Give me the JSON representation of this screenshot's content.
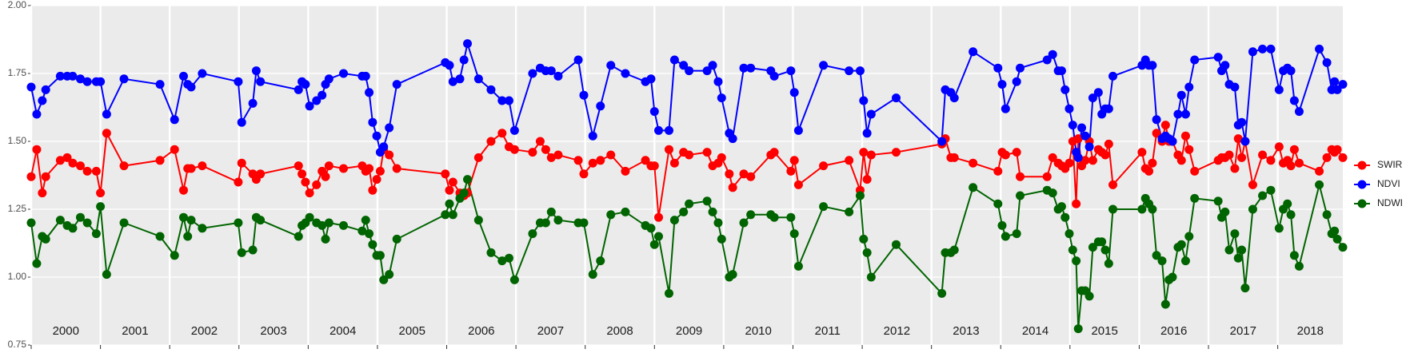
{
  "chart_data": {
    "type": "line",
    "x": [
      2000.0,
      2000.08,
      2000.16,
      2000.21,
      2000.42,
      2000.52,
      2000.6,
      2000.71,
      2000.81,
      2000.94,
      2001.0,
      2001.09,
      2001.34,
      2001.86,
      2002.07,
      2002.2,
      2002.26,
      2002.31,
      2002.47,
      2002.99,
      2003.04,
      2003.2,
      2003.25,
      2003.31,
      2003.86,
      2003.91,
      2003.96,
      2004.02,
      2004.12,
      2004.2,
      2004.25,
      2004.3,
      2004.51,
      2004.78,
      2004.83,
      2004.88,
      2004.93,
      2004.99,
      2005.04,
      2005.09,
      2005.17,
      2005.28,
      2005.98,
      2006.04,
      2006.09,
      2006.19,
      2006.25,
      2006.3,
      2006.46,
      2006.64,
      2006.8,
      2006.9,
      2006.98,
      2007.24,
      2007.35,
      2007.43,
      2007.51,
      2007.61,
      2007.9,
      2007.98,
      2008.11,
      2008.22,
      2008.37,
      2008.58,
      2008.87,
      2008.95,
      2009.0,
      2009.06,
      2009.21,
      2009.29,
      2009.42,
      2009.5,
      2009.76,
      2009.84,
      2009.92,
      2009.97,
      2010.08,
      2010.13,
      2010.29,
      2010.39,
      2010.68,
      2010.73,
      2010.97,
      2011.02,
      2011.08,
      2011.44,
      2011.81,
      2011.97,
      2012.02,
      2012.07,
      2012.13,
      2012.49,
      2013.15,
      2013.2,
      2013.28,
      2013.33,
      2013.6,
      2013.96,
      2014.02,
      2014.07,
      2014.23,
      2014.28,
      2014.67,
      2014.75,
      2014.83,
      2014.88,
      2014.93,
      2014.99,
      2015.04,
      2015.09,
      2015.12,
      2015.17,
      2015.22,
      2015.28,
      2015.33,
      2015.41,
      2015.46,
      2015.51,
      2015.56,
      2015.62,
      2016.04,
      2016.09,
      2016.14,
      2016.19,
      2016.25,
      2016.33,
      2016.38,
      2016.43,
      2016.48,
      2016.56,
      2016.61,
      2016.67,
      2016.72,
      2016.8,
      2017.14,
      2017.19,
      2017.24,
      2017.3,
      2017.38,
      2017.43,
      2017.48,
      2017.53,
      2017.64,
      2017.78,
      2017.9,
      2018.02,
      2018.08,
      2018.14,
      2018.19,
      2018.24,
      2018.31,
      2018.6,
      2018.71,
      2018.78,
      2018.82,
      2018.86,
      2018.94
    ],
    "series": [
      {
        "name": "SWIR",
        "color": "#ff0000",
        "values": [
          1.37,
          1.47,
          1.31,
          1.37,
          1.43,
          1.44,
          1.42,
          1.41,
          1.39,
          1.39,
          1.31,
          1.53,
          1.41,
          1.43,
          1.47,
          1.32,
          1.4,
          1.4,
          1.41,
          1.35,
          1.42,
          1.38,
          1.36,
          1.38,
          1.41,
          1.38,
          1.35,
          1.31,
          1.34,
          1.39,
          1.37,
          1.41,
          1.4,
          1.41,
          1.39,
          1.4,
          1.32,
          1.36,
          1.39,
          1.47,
          1.45,
          1.4,
          1.38,
          1.32,
          1.35,
          1.31,
          1.3,
          1.31,
          1.44,
          1.5,
          1.53,
          1.48,
          1.47,
          1.46,
          1.5,
          1.47,
          1.44,
          1.45,
          1.43,
          1.38,
          1.42,
          1.43,
          1.45,
          1.39,
          1.43,
          1.41,
          1.41,
          1.22,
          1.47,
          1.42,
          1.46,
          1.45,
          1.46,
          1.41,
          1.42,
          1.44,
          1.38,
          1.33,
          1.38,
          1.37,
          1.45,
          1.46,
          1.39,
          1.43,
          1.34,
          1.41,
          1.43,
          1.32,
          1.46,
          1.36,
          1.45,
          1.46,
          1.49,
          1.51,
          1.44,
          1.44,
          1.42,
          1.39,
          1.46,
          1.45,
          1.46,
          1.37,
          1.37,
          1.44,
          1.42,
          1.41,
          1.4,
          1.42,
          1.5,
          1.27,
          1.51,
          1.41,
          1.43,
          1.5,
          1.43,
          1.47,
          1.46,
          1.45,
          1.49,
          1.34,
          1.46,
          1.4,
          1.39,
          1.42,
          1.53,
          1.5,
          1.56,
          1.5,
          1.5,
          1.45,
          1.43,
          1.52,
          1.47,
          1.39,
          1.43,
          1.44,
          1.44,
          1.45,
          1.4,
          1.51,
          1.44,
          1.5,
          1.34,
          1.45,
          1.43,
          1.48,
          1.42,
          1.43,
          1.41,
          1.47,
          1.42,
          1.39,
          1.44,
          1.47,
          1.46,
          1.47,
          1.44
        ]
      },
      {
        "name": "NDVI",
        "color": "#0000ff",
        "values": [
          1.7,
          1.6,
          1.65,
          1.69,
          1.74,
          1.74,
          1.74,
          1.73,
          1.72,
          1.72,
          1.72,
          1.6,
          1.73,
          1.71,
          1.58,
          1.74,
          1.71,
          1.7,
          1.75,
          1.72,
          1.57,
          1.64,
          1.76,
          1.72,
          1.69,
          1.72,
          1.71,
          1.63,
          1.65,
          1.67,
          1.71,
          1.73,
          1.75,
          1.74,
          1.74,
          1.68,
          1.57,
          1.52,
          1.46,
          1.48,
          1.55,
          1.71,
          1.79,
          1.78,
          1.72,
          1.73,
          1.8,
          1.86,
          1.73,
          1.69,
          1.65,
          1.65,
          1.54,
          1.75,
          1.77,
          1.76,
          1.76,
          1.74,
          1.8,
          1.67,
          1.52,
          1.63,
          1.78,
          1.75,
          1.72,
          1.73,
          1.61,
          1.54,
          1.54,
          1.8,
          1.78,
          1.76,
          1.76,
          1.78,
          1.72,
          1.66,
          1.53,
          1.51,
          1.77,
          1.77,
          1.76,
          1.74,
          1.76,
          1.68,
          1.54,
          1.78,
          1.76,
          1.76,
          1.65,
          1.53,
          1.6,
          1.66,
          1.5,
          1.69,
          1.68,
          1.66,
          1.83,
          1.77,
          1.71,
          1.62,
          1.72,
          1.77,
          1.8,
          1.82,
          1.76,
          1.76,
          1.69,
          1.62,
          1.56,
          1.46,
          1.44,
          1.55,
          1.52,
          1.48,
          1.66,
          1.68,
          1.6,
          1.62,
          1.62,
          1.74,
          1.78,
          1.8,
          1.78,
          1.78,
          1.58,
          1.51,
          1.52,
          1.51,
          1.5,
          1.6,
          1.67,
          1.6,
          1.7,
          1.8,
          1.81,
          1.76,
          1.78,
          1.71,
          1.7,
          1.56,
          1.57,
          1.5,
          1.83,
          1.84,
          1.84,
          1.69,
          1.76,
          1.77,
          1.76,
          1.65,
          1.61,
          1.84,
          1.79,
          1.69,
          1.72,
          1.69,
          1.71
        ]
      },
      {
        "name": "NDWI",
        "color": "#006400",
        "values": [
          1.2,
          1.05,
          1.15,
          1.14,
          1.21,
          1.19,
          1.18,
          1.22,
          1.2,
          1.16,
          1.26,
          1.01,
          1.2,
          1.15,
          1.08,
          1.22,
          1.15,
          1.21,
          1.18,
          1.2,
          1.09,
          1.1,
          1.22,
          1.21,
          1.15,
          1.19,
          1.2,
          1.22,
          1.2,
          1.19,
          1.14,
          1.2,
          1.19,
          1.17,
          1.21,
          1.16,
          1.12,
          1.08,
          1.08,
          0.99,
          1.01,
          1.14,
          1.23,
          1.27,
          1.23,
          1.29,
          1.31,
          1.36,
          1.21,
          1.09,
          1.06,
          1.07,
          0.99,
          1.16,
          1.2,
          1.2,
          1.24,
          1.21,
          1.2,
          1.2,
          1.01,
          1.06,
          1.23,
          1.24,
          1.19,
          1.18,
          1.12,
          1.15,
          0.94,
          1.21,
          1.24,
          1.27,
          1.28,
          1.24,
          1.2,
          1.14,
          1.0,
          1.01,
          1.2,
          1.23,
          1.23,
          1.22,
          1.22,
          1.16,
          1.04,
          1.26,
          1.24,
          1.3,
          1.14,
          1.09,
          1.0,
          1.12,
          0.94,
          1.09,
          1.09,
          1.1,
          1.33,
          1.27,
          1.19,
          1.15,
          1.16,
          1.3,
          1.32,
          1.31,
          1.25,
          1.26,
          1.22,
          1.16,
          1.1,
          1.06,
          0.81,
          0.95,
          0.95,
          0.93,
          1.11,
          1.13,
          1.13,
          1.1,
          1.05,
          1.25,
          1.25,
          1.29,
          1.27,
          1.25,
          1.08,
          1.06,
          0.9,
          0.99,
          1.0,
          1.11,
          1.12,
          1.06,
          1.15,
          1.29,
          1.28,
          1.22,
          1.24,
          1.1,
          1.16,
          1.07,
          1.1,
          0.96,
          1.25,
          1.3,
          1.32,
          1.18,
          1.25,
          1.27,
          1.23,
          1.08,
          1.04,
          1.34,
          1.23,
          1.16,
          1.17,
          1.14,
          1.11
        ]
      }
    ],
    "xlim": [
      2000,
      2018.94
    ],
    "xticks": [
      2000,
      2001,
      2002,
      2003,
      2004,
      2005,
      2006,
      2007,
      2008,
      2009,
      2010,
      2011,
      2012,
      2013,
      2014,
      2015,
      2016,
      2017,
      2018
    ],
    "ylim": [
      0.75,
      2.0
    ],
    "yticks": [
      0.75,
      {
        "value": 1.0,
        "label": "1.00"
      },
      1.25,
      {
        "value": 1.5,
        "label": "1.50"
      },
      1.75,
      {
        "value": 2.0,
        "label": "2.00"
      }
    ],
    "grid": true,
    "legend": "right"
  }
}
